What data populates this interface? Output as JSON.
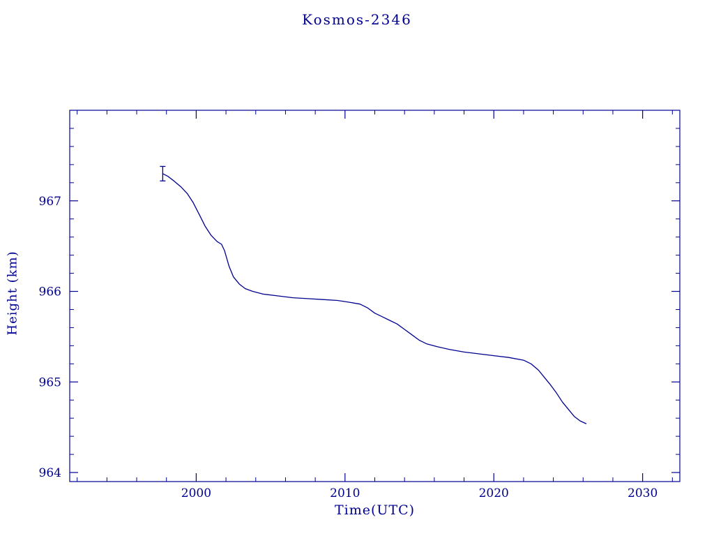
{
  "page": {
    "background": "#ffffff",
    "accent": "#000090"
  },
  "chart_data": {
    "type": "line",
    "title": "Kosmos-2346",
    "xlabel": "Time(UTC)",
    "ylabel": "Height (km)",
    "xlim": [
      1991.5,
      2032.5
    ],
    "ylim": [
      963.9,
      968.0
    ],
    "xticks": [
      2000,
      2010,
      2020,
      2030
    ],
    "yticks": [
      964,
      965,
      966,
      967
    ],
    "x_minor_step": 2,
    "y_minor_step": 0.2,
    "grid": false,
    "legend": "none",
    "line_color": "#000090",
    "error_bar": {
      "x": 1997.75,
      "y": 967.3,
      "y_low": 967.22,
      "y_high": 967.38
    },
    "series": [
      {
        "name": "height",
        "points": [
          [
            1997.75,
            967.3
          ],
          [
            1998.1,
            967.27
          ],
          [
            1998.5,
            967.22
          ],
          [
            1999.0,
            967.15
          ],
          [
            1999.4,
            967.08
          ],
          [
            1999.8,
            966.98
          ],
          [
            2000.2,
            966.85
          ],
          [
            2000.6,
            966.72
          ],
          [
            2001.0,
            966.62
          ],
          [
            2001.4,
            966.55
          ],
          [
            2001.7,
            966.52
          ],
          [
            2001.9,
            966.45
          ],
          [
            2002.2,
            966.28
          ],
          [
            2002.5,
            966.16
          ],
          [
            2002.9,
            966.08
          ],
          [
            2003.3,
            966.03
          ],
          [
            2003.8,
            966.0
          ],
          [
            2004.5,
            965.97
          ],
          [
            2005.5,
            965.95
          ],
          [
            2006.5,
            965.93
          ],
          [
            2007.5,
            965.92
          ],
          [
            2008.5,
            965.91
          ],
          [
            2009.5,
            965.9
          ],
          [
            2010.3,
            965.88
          ],
          [
            2011.0,
            965.86
          ],
          [
            2011.5,
            965.82
          ],
          [
            2012.0,
            965.76
          ],
          [
            2012.5,
            965.72
          ],
          [
            2013.0,
            965.68
          ],
          [
            2013.5,
            965.64
          ],
          [
            2014.0,
            965.58
          ],
          [
            2014.5,
            965.52
          ],
          [
            2015.0,
            965.46
          ],
          [
            2015.5,
            965.42
          ],
          [
            2016.2,
            965.39
          ],
          [
            2017.0,
            965.36
          ],
          [
            2018.0,
            965.33
          ],
          [
            2019.0,
            965.31
          ],
          [
            2020.0,
            965.29
          ],
          [
            2021.0,
            965.27
          ],
          [
            2022.0,
            965.24
          ],
          [
            2022.5,
            965.2
          ],
          [
            2023.0,
            965.13
          ],
          [
            2023.4,
            965.05
          ],
          [
            2023.8,
            964.97
          ],
          [
            2024.2,
            964.88
          ],
          [
            2024.6,
            964.78
          ],
          [
            2025.0,
            964.7
          ],
          [
            2025.4,
            964.62
          ],
          [
            2025.8,
            964.57
          ],
          [
            2026.2,
            964.54
          ]
        ]
      }
    ]
  }
}
